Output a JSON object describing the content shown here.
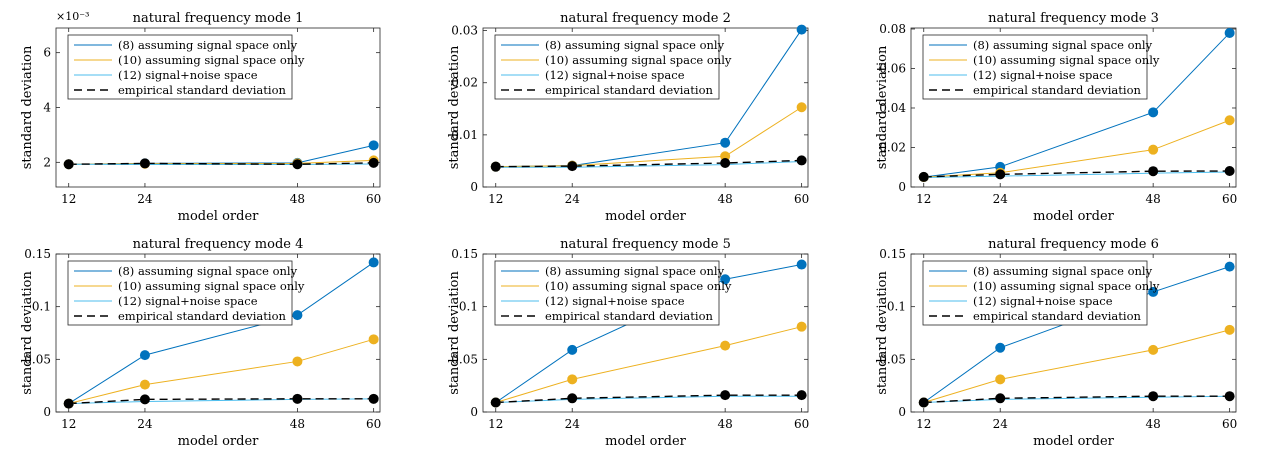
{
  "chart_data": [
    {
      "type": "line",
      "title": "natural frequency mode 1",
      "xlabel": "model order",
      "ylabel": "standard deviation",
      "y_exponent_label": "×10⁻³",
      "x": [
        12,
        24,
        48,
        60
      ],
      "x_ticks": [
        "12",
        "24",
        "48",
        "60"
      ],
      "xlim": [
        10,
        61
      ],
      "ylim": [
        0.0011,
        0.0069
      ],
      "y_ticks": [
        0.002,
        0.004,
        0.006
      ],
      "y_tick_labels": [
        "2",
        "4",
        "6"
      ],
      "legend_position": "top-left",
      "series": [
        {
          "name": "(8) assuming signal space only",
          "color": "#0072BD",
          "style": "solid",
          "values": [
            0.00193,
            0.00196,
            0.00198,
            0.00262
          ]
        },
        {
          "name": "(10) assuming signal space only",
          "color": "#EDB120",
          "style": "solid",
          "values": [
            0.00193,
            0.00195,
            0.00196,
            0.00207
          ]
        },
        {
          "name": "(12) signal+noise space",
          "color": "#4DBEEE",
          "style": "solid",
          "values": [
            0.00193,
            0.00192,
            0.00192,
            0.00194
          ]
        },
        {
          "name": "empirical standard deviation",
          "color": "#000000",
          "style": "dashed",
          "values": [
            0.00193,
            0.00196,
            0.00193,
            0.00198
          ]
        }
      ]
    },
    {
      "type": "line",
      "title": "natural frequency mode 2",
      "xlabel": "model order",
      "ylabel": "standard deviation",
      "x": [
        12,
        24,
        48,
        60
      ],
      "x_ticks": [
        "12",
        "24",
        "48",
        "60"
      ],
      "xlim": [
        10,
        61
      ],
      "ylim": [
        0,
        0.0305
      ],
      "y_ticks": [
        0,
        0.01,
        0.02,
        0.03
      ],
      "y_tick_labels": [
        "0",
        "0.01",
        "0.02",
        "0.03"
      ],
      "legend_position": "top-left",
      "series": [
        {
          "name": "(8) assuming signal space only",
          "color": "#0072BD",
          "style": "solid",
          "values": [
            0.0039,
            0.0041,
            0.0085,
            0.0302
          ]
        },
        {
          "name": "(10) assuming signal space only",
          "color": "#EDB120",
          "style": "solid",
          "values": [
            0.0039,
            0.0041,
            0.0059,
            0.0153
          ]
        },
        {
          "name": "(12) signal+noise space",
          "color": "#4DBEEE",
          "style": "solid",
          "values": [
            0.0038,
            0.0038,
            0.0043,
            0.0049
          ]
        },
        {
          "name": "empirical standard deviation",
          "color": "#000000",
          "style": "dashed",
          "values": [
            0.0039,
            0.004,
            0.0046,
            0.0051
          ]
        }
      ]
    },
    {
      "type": "line",
      "title": "natural frequency mode 3",
      "xlabel": "model order",
      "ylabel": "standard deviation",
      "x": [
        12,
        24,
        48,
        60
      ],
      "x_ticks": [
        "12",
        "24",
        "48",
        "60"
      ],
      "xlim": [
        10,
        61
      ],
      "ylim": [
        0,
        0.0805
      ],
      "y_ticks": [
        0,
        0.02,
        0.04,
        0.06,
        0.08
      ],
      "y_tick_labels": [
        "0",
        "0.02",
        "0.04",
        "0.06",
        "0.08"
      ],
      "legend_position": "top-left",
      "series": [
        {
          "name": "(8) assuming signal space only",
          "color": "#0072BD",
          "style": "solid",
          "values": [
            0.005,
            0.0102,
            0.0378,
            0.078
          ]
        },
        {
          "name": "(10) assuming signal space only",
          "color": "#EDB120",
          "style": "solid",
          "values": [
            0.005,
            0.0072,
            0.0189,
            0.0338
          ]
        },
        {
          "name": "(12) signal+noise space",
          "color": "#4DBEEE",
          "style": "solid",
          "values": [
            0.0048,
            0.0055,
            0.007,
            0.0076
          ]
        },
        {
          "name": "empirical standard deviation",
          "color": "#000000",
          "style": "dashed",
          "values": [
            0.0051,
            0.0064,
            0.008,
            0.0081
          ]
        }
      ]
    },
    {
      "type": "line",
      "title": "natural frequency mode 4",
      "xlabel": "model order",
      "ylabel": "standard deviation",
      "x": [
        12,
        24,
        48,
        60
      ],
      "x_ticks": [
        "12",
        "24",
        "48",
        "60"
      ],
      "xlim": [
        10,
        61
      ],
      "ylim": [
        0,
        0.15
      ],
      "y_ticks": [
        0,
        0.05,
        0.1,
        0.15
      ],
      "y_tick_labels": [
        "0",
        "0.05",
        "0.1",
        "0.15"
      ],
      "legend_position": "top-left",
      "series": [
        {
          "name": "(8) assuming signal space only",
          "color": "#0072BD",
          "style": "solid",
          "values": [
            0.008,
            0.054,
            0.092,
            0.142
          ]
        },
        {
          "name": "(10) assuming signal space only",
          "color": "#EDB120",
          "style": "solid",
          "values": [
            0.008,
            0.026,
            0.048,
            0.069
          ]
        },
        {
          "name": "(12) signal+noise space",
          "color": "#4DBEEE",
          "style": "solid",
          "values": [
            0.008,
            0.01,
            0.012,
            0.0125
          ]
        },
        {
          "name": "empirical standard deviation",
          "color": "#000000",
          "style": "dashed",
          "values": [
            0.008,
            0.012,
            0.0125,
            0.0125
          ]
        }
      ]
    },
    {
      "type": "line",
      "title": "natural frequency mode 5",
      "xlabel": "model order",
      "ylabel": "standard deviation",
      "x": [
        12,
        24,
        48,
        60
      ],
      "x_ticks": [
        "12",
        "24",
        "48",
        "60"
      ],
      "xlim": [
        10,
        61
      ],
      "ylim": [
        0,
        0.15
      ],
      "y_ticks": [
        0,
        0.05,
        0.1,
        0.15
      ],
      "y_tick_labels": [
        "0",
        "0.05",
        "0.1",
        "0.15"
      ],
      "legend_position": "top-left",
      "series": [
        {
          "name": "(8) assuming signal space only",
          "color": "#0072BD",
          "style": "solid",
          "values": [
            0.009,
            0.059,
            0.126,
            0.14
          ]
        },
        {
          "name": "(10) assuming signal space only",
          "color": "#EDB120",
          "style": "solid",
          "values": [
            0.009,
            0.031,
            0.063,
            0.081
          ]
        },
        {
          "name": "(12) signal+noise space",
          "color": "#4DBEEE",
          "style": "solid",
          "values": [
            0.009,
            0.012,
            0.015,
            0.015
          ]
        },
        {
          "name": "empirical standard deviation",
          "color": "#000000",
          "style": "dashed",
          "values": [
            0.009,
            0.013,
            0.016,
            0.016
          ]
        }
      ]
    },
    {
      "type": "line",
      "title": "natural frequency mode 6",
      "xlabel": "model order",
      "ylabel": "standard deviation",
      "x": [
        12,
        24,
        48,
        60
      ],
      "x_ticks": [
        "12",
        "24",
        "48",
        "60"
      ],
      "xlim": [
        10,
        61
      ],
      "ylim": [
        0,
        0.15
      ],
      "y_ticks": [
        0,
        0.05,
        0.1,
        0.15
      ],
      "y_tick_labels": [
        "0",
        "0.05",
        "0.1",
        "0.15"
      ],
      "legend_position": "top-left",
      "series": [
        {
          "name": "(8) assuming signal space only",
          "color": "#0072BD",
          "style": "solid",
          "values": [
            0.009,
            0.061,
            0.114,
            0.138
          ]
        },
        {
          "name": "(10) assuming signal space only",
          "color": "#EDB120",
          "style": "solid",
          "values": [
            0.009,
            0.031,
            0.059,
            0.078
          ]
        },
        {
          "name": "(12) signal+noise space",
          "color": "#4DBEEE",
          "style": "solid",
          "values": [
            0.009,
            0.012,
            0.014,
            0.015
          ]
        },
        {
          "name": "empirical standard deviation",
          "color": "#000000",
          "style": "dashed",
          "values": [
            0.009,
            0.013,
            0.015,
            0.015
          ]
        }
      ]
    }
  ]
}
